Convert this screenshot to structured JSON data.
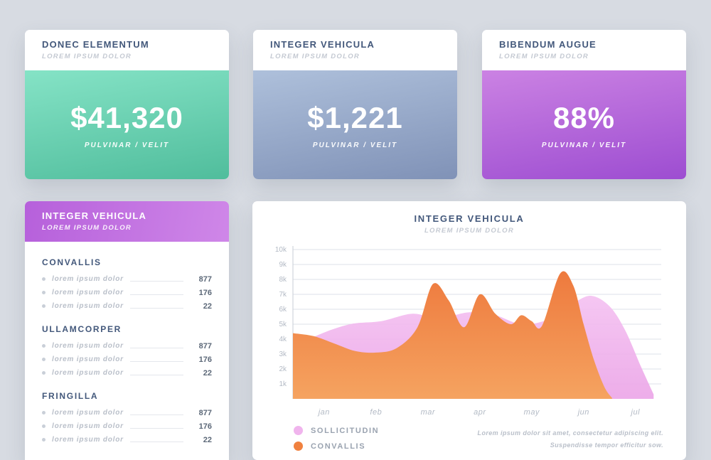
{
  "stat_cards": [
    {
      "title": "DONEC ELEMENTUM",
      "subtitle": "LOREM IPSUM DOLOR",
      "value": "$41,320",
      "caption": "PULVINAR / VELIT",
      "gradient_from": "#85e3c6",
      "gradient_to": "#50bd9c",
      "gradient_angle": 170
    },
    {
      "title": "INTEGER VEHICULA",
      "subtitle": "LOREM IPSUM DOLOR",
      "value": "$1,221",
      "caption": "PULVINAR / VELIT",
      "gradient_from": "#aec0db",
      "gradient_to": "#8092b7",
      "gradient_angle": 170
    },
    {
      "title": "BIBENDUM AUGUE",
      "subtitle": "LOREM IPSUM DOLOR",
      "value": "88%",
      "caption": "PULVINAR / VELIT",
      "gradient_from": "#cb82e3",
      "gradient_to": "#9d4dd1",
      "gradient_angle": 170
    }
  ],
  "list_card": {
    "title": "INTEGER VEHICULA",
    "subtitle": "LOREM IPSUM DOLOR",
    "gradient_from": "#b660db",
    "gradient_to": "#cf87e8",
    "gradient_angle": 100,
    "sections": [
      {
        "heading": "CONVALLIS",
        "rows": [
          {
            "label": "lorem ipsum dolor",
            "value": "877"
          },
          {
            "label": "lorem ipsum dolor",
            "value": "176"
          },
          {
            "label": "lorem ipsum dolor",
            "value": "22"
          }
        ]
      },
      {
        "heading": "ULLAMCORPER",
        "rows": [
          {
            "label": "lorem ipsum dolor",
            "value": "877"
          },
          {
            "label": "lorem ipsum dolor",
            "value": "176"
          },
          {
            "label": "lorem ipsum dolor",
            "value": "22"
          }
        ]
      },
      {
        "heading": "FRINGILLA",
        "rows": [
          {
            "label": "lorem ipsum dolor",
            "value": "877"
          },
          {
            "label": "lorem ipsum dolor",
            "value": "176"
          },
          {
            "label": "lorem ipsum dolor",
            "value": "22"
          }
        ]
      }
    ]
  },
  "chart_card": {
    "title": "INTEGER VEHICULA",
    "subtitle": "LOREM IPSUM DOLOR",
    "legend": [
      {
        "label": "SOLLICITUDIN",
        "color": "#f0b4ed"
      },
      {
        "label": "CONVALLIS",
        "color": "#f0813f"
      }
    ],
    "note_line1": "Lorem ipsum dolor sit amet, consectetur adipiscing elit.",
    "note_line2": "Suspendisse tempor efficitur sow."
  },
  "chart_data": {
    "type": "area",
    "title": "INTEGER VEHICULA",
    "x_labels": [
      "jan",
      "feb",
      "mar",
      "apr",
      "may",
      "jun",
      "jul"
    ],
    "y_ticks": [
      "1k",
      "2k",
      "3k",
      "4k",
      "5k",
      "6k",
      "7k",
      "8k",
      "9k",
      "10k"
    ],
    "ylim": [
      0,
      10
    ],
    "y_unit": "thousands",
    "grid": true,
    "legend_position": "bottom-left",
    "series": [
      {
        "name": "SOLLICITUDIN",
        "color_top": "#f4c0f1",
        "color_bottom": "#eba4e7",
        "opacity": 0.9,
        "points": [
          [
            -0.6,
            3.4
          ],
          [
            -0.1,
            4.3
          ],
          [
            0.5,
            5.0
          ],
          [
            1.1,
            5.2
          ],
          [
            1.7,
            5.7
          ],
          [
            2.2,
            5.4
          ],
          [
            2.8,
            5.8
          ],
          [
            3.3,
            5.6
          ],
          [
            3.8,
            5.0
          ],
          [
            4.3,
            5.3
          ],
          [
            4.8,
            6.4
          ],
          [
            5.15,
            6.9
          ],
          [
            5.5,
            6.2
          ],
          [
            5.8,
            4.6
          ],
          [
            6.1,
            2.2
          ],
          [
            6.35,
            0.3
          ]
        ]
      },
      {
        "name": "CONVALLIS",
        "color_top": "#ee7a3e",
        "color_bottom": "#f5a360",
        "opacity": 1,
        "points": [
          [
            -0.6,
            4.4
          ],
          [
            -0.2,
            4.2
          ],
          [
            0.2,
            3.7
          ],
          [
            0.6,
            3.2
          ],
          [
            1.0,
            3.1
          ],
          [
            1.4,
            3.4
          ],
          [
            1.8,
            4.8
          ],
          [
            2.1,
            7.7
          ],
          [
            2.4,
            6.6
          ],
          [
            2.7,
            4.8
          ],
          [
            3.0,
            7.0
          ],
          [
            3.3,
            5.7
          ],
          [
            3.6,
            5.0
          ],
          [
            3.8,
            5.6
          ],
          [
            4.0,
            5.2
          ],
          [
            4.2,
            4.9
          ],
          [
            4.55,
            8.4
          ],
          [
            4.8,
            7.6
          ],
          [
            5.0,
            5.0
          ],
          [
            5.2,
            2.6
          ],
          [
            5.4,
            0.8
          ],
          [
            5.55,
            0.05
          ]
        ]
      }
    ]
  }
}
